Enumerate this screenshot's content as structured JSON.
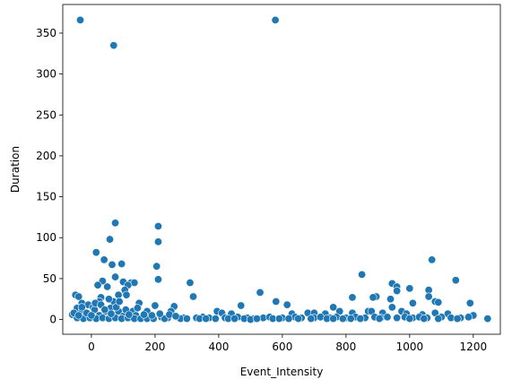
{
  "chart_data": {
    "type": "scatter",
    "title": "",
    "xlabel": "Event_Intensity",
    "ylabel": "Duration",
    "xlim": [
      -90,
      1285
    ],
    "ylim": [
      -18,
      385
    ],
    "xticks": [
      0,
      200,
      400,
      600,
      800,
      1000,
      1200
    ],
    "yticks": [
      0,
      50,
      100,
      150,
      200,
      250,
      300,
      350
    ],
    "xtick_labels": [
      "0",
      "200",
      "400",
      "600",
      "800",
      "1000",
      "1200"
    ],
    "ytick_labels": [
      "0",
      "50",
      "100",
      "150",
      "200",
      "250",
      "300",
      "350"
    ],
    "marker_color": "#1f77b4",
    "marker_edge": "#ffffff",
    "grid": false,
    "points": [
      [
        -35,
        366
      ],
      [
        578,
        366
      ],
      [
        70,
        335
      ],
      [
        75,
        118
      ],
      [
        210,
        114
      ],
      [
        210,
        95
      ],
      [
        58,
        98
      ],
      [
        15,
        82
      ],
      [
        40,
        73
      ],
      [
        1070,
        73
      ],
      [
        95,
        68
      ],
      [
        65,
        67
      ],
      [
        205,
        65
      ],
      [
        850,
        55
      ],
      [
        75,
        52
      ],
      [
        210,
        49
      ],
      [
        1145,
        48
      ],
      [
        35,
        47
      ],
      [
        100,
        46
      ],
      [
        125,
        45
      ],
      [
        135,
        45
      ],
      [
        310,
        45
      ],
      [
        945,
        44
      ],
      [
        115,
        42
      ],
      [
        20,
        42
      ],
      [
        50,
        40
      ],
      [
        960,
        40
      ],
      [
        1000,
        38
      ],
      [
        105,
        36
      ],
      [
        1060,
        36
      ],
      [
        960,
        35
      ],
      [
        -50,
        30
      ],
      [
        85,
        30
      ],
      [
        110,
        30
      ],
      [
        530,
        33
      ],
      [
        1060,
        28
      ],
      [
        320,
        28
      ],
      [
        820,
        27
      ],
      [
        895,
        28
      ],
      [
        885,
        27
      ],
      [
        -40,
        28
      ],
      [
        30,
        27
      ],
      [
        70,
        22
      ],
      [
        940,
        25
      ],
      [
        25,
        22
      ],
      [
        -30,
        20
      ],
      [
        -10,
        18
      ],
      [
        150,
        20
      ],
      [
        580,
        22
      ],
      [
        1080,
        22
      ],
      [
        1090,
        21
      ],
      [
        1190,
        20
      ],
      [
        1010,
        20
      ],
      [
        945,
        15
      ],
      [
        200,
        17
      ],
      [
        615,
        18
      ],
      [
        470,
        17
      ],
      [
        760,
        15
      ],
      [
        -45,
        14
      ],
      [
        5,
        15
      ],
      [
        60,
        14
      ],
      [
        260,
        16
      ],
      [
        10,
        12
      ],
      [
        -30,
        10
      ],
      [
        45,
        10
      ],
      [
        85,
        10
      ],
      [
        130,
        10
      ],
      [
        175,
        10
      ],
      [
        250,
        10
      ],
      [
        395,
        10
      ],
      [
        410,
        8
      ],
      [
        440,
        7
      ],
      [
        630,
        7
      ],
      [
        680,
        8
      ],
      [
        700,
        8
      ],
      [
        735,
        7
      ],
      [
        780,
        10
      ],
      [
        820,
        8
      ],
      [
        870,
        10
      ],
      [
        880,
        10
      ],
      [
        915,
        8
      ],
      [
        975,
        10
      ],
      [
        990,
        7
      ],
      [
        1040,
        6
      ],
      [
        1080,
        8
      ],
      [
        1120,
        7
      ],
      [
        1200,
        5
      ],
      [
        -60,
        6
      ],
      [
        -20,
        5
      ],
      [
        25,
        5
      ],
      [
        65,
        4
      ],
      [
        100,
        4
      ],
      [
        140,
        5
      ],
      [
        160,
        3
      ],
      [
        185,
        2
      ],
      [
        220,
        3
      ],
      [
        240,
        2
      ],
      [
        270,
        3
      ],
      [
        290,
        2
      ],
      [
        330,
        2
      ],
      [
        350,
        3
      ],
      [
        370,
        2
      ],
      [
        390,
        1
      ],
      [
        420,
        2
      ],
      [
        460,
        3
      ],
      [
        490,
        2
      ],
      [
        510,
        1
      ],
      [
        540,
        2
      ],
      [
        560,
        3
      ],
      [
        600,
        2
      ],
      [
        640,
        3
      ],
      [
        660,
        2
      ],
      [
        700,
        2
      ],
      [
        720,
        3
      ],
      [
        750,
        2
      ],
      [
        770,
        3
      ],
      [
        800,
        2
      ],
      [
        830,
        3
      ],
      [
        860,
        2
      ],
      [
        890,
        3
      ],
      [
        910,
        2
      ],
      [
        930,
        3
      ],
      [
        960,
        2
      ],
      [
        985,
        3
      ],
      [
        1010,
        2
      ],
      [
        1030,
        3
      ],
      [
        1055,
        2
      ],
      [
        1100,
        3
      ],
      [
        1130,
        2
      ],
      [
        1160,
        2
      ],
      [
        1185,
        3
      ],
      [
        1245,
        1
      ],
      [
        -45,
        2
      ],
      [
        -25,
        1
      ],
      [
        -5,
        2
      ],
      [
        15,
        1
      ],
      [
        35,
        2
      ],
      [
        55,
        1
      ],
      [
        75,
        2
      ],
      [
        95,
        1
      ],
      [
        115,
        2
      ],
      [
        135,
        1
      ],
      [
        155,
        1
      ],
      [
        175,
        1
      ],
      [
        195,
        1
      ],
      [
        230,
        1
      ],
      [
        280,
        1
      ],
      [
        300,
        1
      ],
      [
        340,
        1
      ],
      [
        360,
        1
      ],
      [
        430,
        1
      ],
      [
        450,
        1
      ],
      [
        480,
        1
      ],
      [
        500,
        0
      ],
      [
        520,
        1
      ],
      [
        570,
        1
      ],
      [
        590,
        1
      ],
      [
        620,
        1
      ],
      [
        650,
        1
      ],
      [
        690,
        1
      ],
      [
        740,
        1
      ],
      [
        760,
        1
      ],
      [
        790,
        1
      ],
      [
        815,
        1
      ],
      [
        845,
        1
      ],
      [
        905,
        1
      ],
      [
        1000,
        1
      ],
      [
        1045,
        1
      ],
      [
        1090,
        1
      ],
      [
        1150,
        1
      ],
      [
        -55,
        8
      ],
      [
        -40,
        5
      ],
      [
        -30,
        15
      ],
      [
        -15,
        8
      ],
      [
        0,
        5
      ],
      [
        12,
        20
      ],
      [
        30,
        18
      ],
      [
        42,
        12
      ],
      [
        55,
        25
      ],
      [
        62,
        7
      ],
      [
        78,
        15
      ],
      [
        88,
        22
      ],
      [
        108,
        12
      ],
      [
        118,
        6
      ],
      [
        145,
        14
      ],
      [
        165,
        6
      ],
      [
        190,
        5
      ],
      [
        215,
        7
      ],
      [
        245,
        6
      ],
      [
        265,
        4
      ]
    ]
  }
}
